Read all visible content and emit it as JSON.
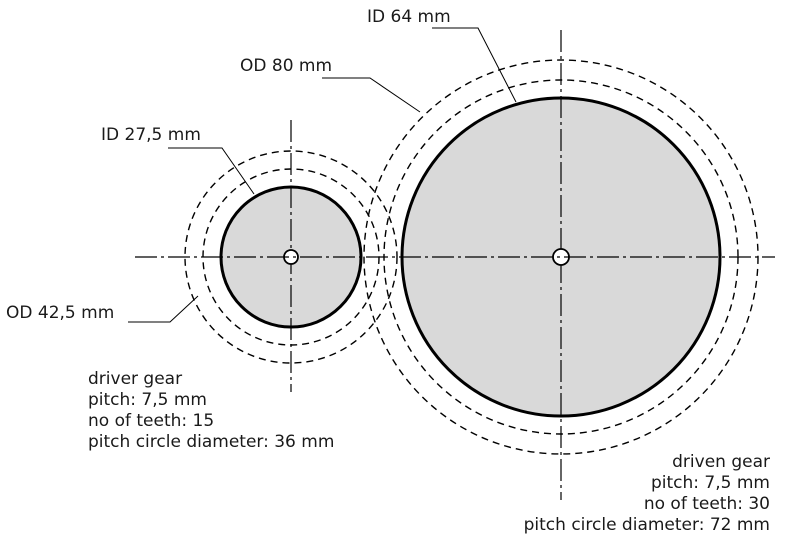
{
  "labels": {
    "id_small": "ID 27,5 mm",
    "od_small": "OD 42,5 mm",
    "id_large": "ID 64 mm",
    "od_large": "OD 80 mm"
  },
  "driver_gear": {
    "title": "driver gear",
    "pitch": "pitch: 7,5 mm",
    "teeth": "no of teeth: 15",
    "pcd": "pitch circle diameter: 36 mm"
  },
  "driven_gear": {
    "title": "driven gear",
    "pitch": "pitch: 7,5 mm",
    "teeth": "no of teeth: 30",
    "pcd": "pitch circle diameter: 72 mm"
  },
  "colors": {
    "stroke": "#000000",
    "fill": "#d9d9d9",
    "text": "#1a1a1a"
  }
}
